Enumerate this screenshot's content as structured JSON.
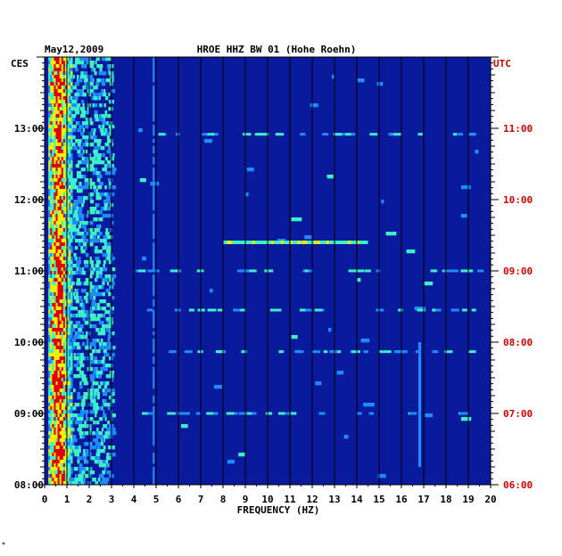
{
  "chart_data": {
    "type": "heatmap",
    "date": "May12,2009",
    "title": "HROE HHZ BW 01 (Hohe Roehn)",
    "left_timezone": "CES",
    "right_timezone": "UTC",
    "xlabel": "FREQUENCY (HZ)",
    "xlim": [
      0,
      20
    ],
    "x_ticks": [
      "0",
      "1",
      "2",
      "3",
      "4",
      "5",
      "6",
      "7",
      "8",
      "9",
      "10",
      "11",
      "12",
      "13",
      "14",
      "15",
      "16",
      "17",
      "18",
      "19",
      "20"
    ],
    "left_time_ticks": [
      "13:00",
      "12:00",
      "11:00",
      "10:00",
      "09:00",
      "08:00"
    ],
    "right_time_ticks": [
      "11:00",
      "10:00",
      "09:00",
      "08:00",
      "07:00",
      "06:00"
    ],
    "time_range_local": [
      "08:00",
      "14:00"
    ],
    "grid": true,
    "colors": {
      "background": "#0a1a9c",
      "low": "#0a1a9c",
      "mid": "#1e8cff",
      "high_mid": "#3cf0c8",
      "high": "#f0f000",
      "peak": "#e00000",
      "utc_labels": "#d40000"
    },
    "features": [
      {
        "name": "strong band",
        "freq_range_hz": [
          0.2,
          1.2
        ],
        "intensity": "high"
      },
      {
        "name": "secondary band",
        "freq_range_hz": [
          1.2,
          3.0
        ],
        "intensity": "medium"
      },
      {
        "name": "line",
        "freq_hz": 4.9,
        "intensity": "medium"
      },
      {
        "name": "event",
        "freq_range_hz": [
          8.0,
          14.5
        ],
        "time_local": "11:24",
        "intensity": "medium"
      },
      {
        "name": "line",
        "freq_hz": 16.8,
        "time_range_local": [
          "08:15",
          "10:00"
        ],
        "intensity": "medium"
      }
    ]
  },
  "footer_mark": "*"
}
